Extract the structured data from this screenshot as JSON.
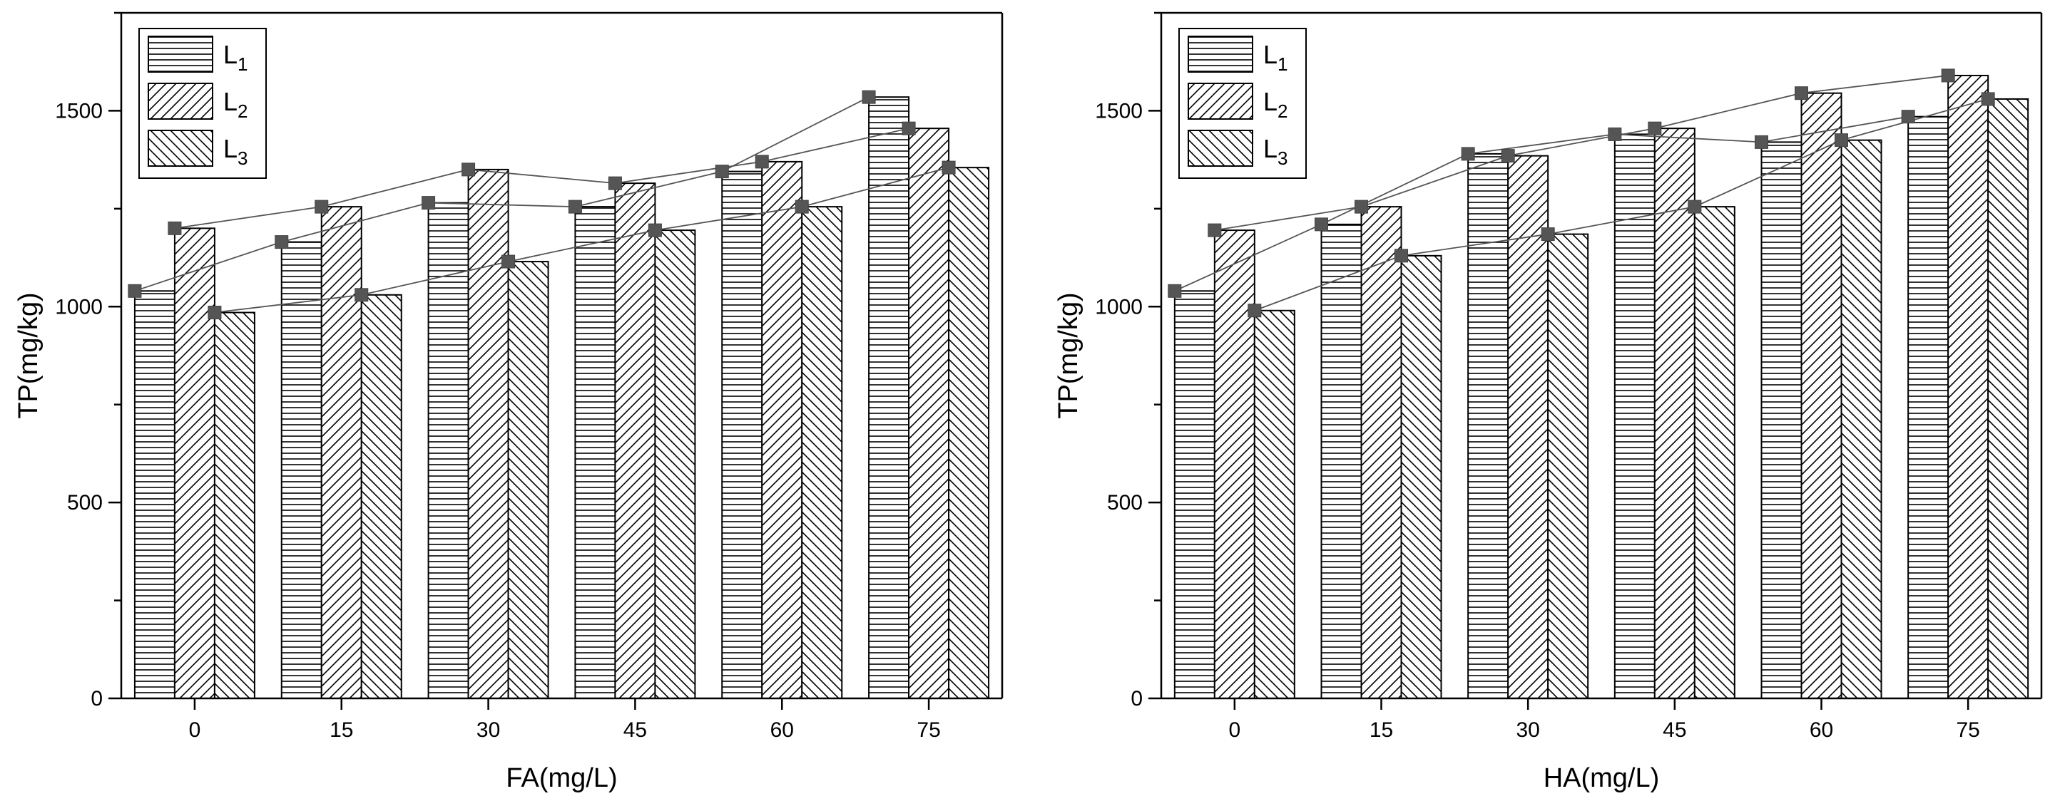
{
  "chart_data": [
    {
      "type": "bar",
      "title": "",
      "xlabel": "FA(mg/L)",
      "ylabel": "TP(mg/kg)",
      "ylim": [
        0,
        1750
      ],
      "yticks": [
        0,
        500,
        1000,
        1500
      ],
      "categories": [
        "0",
        "15",
        "30",
        "45",
        "60",
        "75"
      ],
      "series": [
        {
          "name": "L",
          "sub": "1",
          "pattern": "horizontal",
          "values": [
            1040,
            1165,
            1265,
            1255,
            1345,
            1535
          ]
        },
        {
          "name": "L",
          "sub": "2",
          "pattern": "diag-right",
          "values": [
            1200,
            1255,
            1350,
            1315,
            1370,
            1455
          ]
        },
        {
          "name": "L",
          "sub": "3",
          "pattern": "diag-left",
          "values": [
            985,
            1030,
            1115,
            1195,
            1255,
            1355
          ]
        }
      ],
      "overlay_line": true,
      "grid": false,
      "legend_position": "top-left"
    },
    {
      "type": "bar",
      "title": "",
      "xlabel": "HA(mg/L)",
      "ylabel": "TP(mg/kg)",
      "ylim": [
        0,
        1750
      ],
      "yticks": [
        0,
        500,
        1000,
        1500
      ],
      "categories": [
        "0",
        "15",
        "30",
        "45",
        "60",
        "75"
      ],
      "series": [
        {
          "name": "L",
          "sub": "1",
          "pattern": "horizontal",
          "values": [
            1040,
            1210,
            1390,
            1440,
            1420,
            1485
          ]
        },
        {
          "name": "L",
          "sub": "2",
          "pattern": "diag-right",
          "values": [
            1195,
            1255,
            1385,
            1455,
            1545,
            1590
          ]
        },
        {
          "name": "L",
          "sub": "3",
          "pattern": "diag-left",
          "values": [
            990,
            1130,
            1185,
            1255,
            1425,
            1530
          ]
        }
      ],
      "overlay_line": true,
      "grid": false,
      "legend_position": "top-left"
    }
  ]
}
